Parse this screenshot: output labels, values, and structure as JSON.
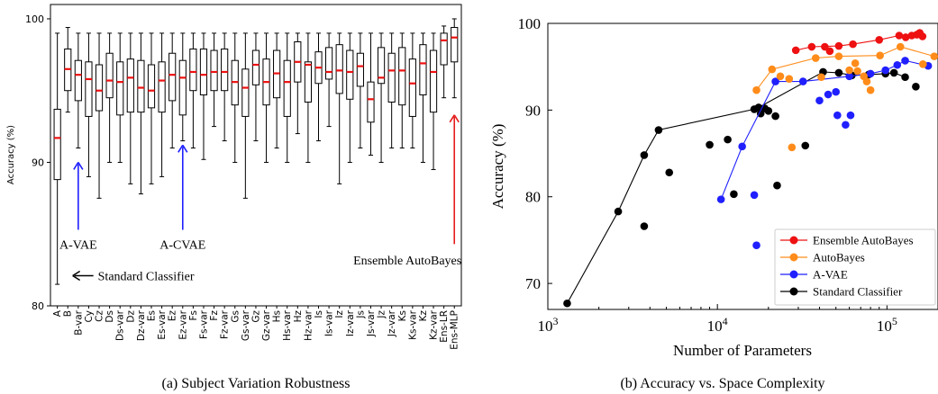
{
  "chart_data": [
    {
      "type": "box",
      "caption": "(a) Subject Variation Robustness",
      "ylabel": "Accuracy (%)",
      "ylim": [
        80,
        101
      ],
      "yticks": [
        80,
        90,
        100
      ],
      "categories": [
        "A",
        "B",
        "B-var",
        "Cy",
        "Cz",
        "Ds",
        "Ds-var",
        "Dz",
        "Dz-var",
        "Es",
        "Es-var",
        "Ez",
        "Ez-var",
        "Fs",
        "Fs-var",
        "Fz",
        "Fz-var",
        "Gs",
        "Gs-var",
        "Gz",
        "Gz-var",
        "Hs",
        "Hs-var",
        "Hz",
        "Hz-var",
        "Is",
        "Is-var",
        "Iz",
        "Iz-var",
        "Js",
        "Js-var",
        "Jz",
        "Jz-var",
        "Ks",
        "Ks-var",
        "Kz",
        "Kz-var",
        "Ens-LR",
        "Ens-MLP"
      ],
      "boxes": [
        {
          "min": 81.5,
          "q1": 88.8,
          "median": 91.7,
          "q3": 93.7,
          "max": 99.0
        },
        {
          "min": 93.5,
          "q1": 95.0,
          "median": 96.5,
          "q3": 97.9,
          "max": 99.4
        },
        {
          "min": 91.0,
          "q1": 94.3,
          "median": 96.1,
          "q3": 97.1,
          "max": 99.0
        },
        {
          "min": 89.0,
          "q1": 93.2,
          "median": 95.8,
          "q3": 97.0,
          "max": 99.0
        },
        {
          "min": 87.5,
          "q1": 93.6,
          "median": 95.0,
          "q3": 96.8,
          "max": 99.0
        },
        {
          "min": 90.0,
          "q1": 94.5,
          "median": 95.7,
          "q3": 97.6,
          "max": 99.0
        },
        {
          "min": 90.0,
          "q1": 93.3,
          "median": 95.6,
          "q3": 97.0,
          "max": 99.0
        },
        {
          "min": 88.5,
          "q1": 93.5,
          "median": 95.9,
          "q3": 97.2,
          "max": 99.0
        },
        {
          "min": 87.8,
          "q1": 93.5,
          "median": 95.2,
          "q3": 97.1,
          "max": 99.0
        },
        {
          "min": 88.5,
          "q1": 93.8,
          "median": 95.0,
          "q3": 96.8,
          "max": 99.0
        },
        {
          "min": 89.0,
          "q1": 93.5,
          "median": 95.7,
          "q3": 97.0,
          "max": 99.0
        },
        {
          "min": 91.0,
          "q1": 94.3,
          "median": 96.1,
          "q3": 97.6,
          "max": 99.0
        },
        {
          "min": 91.5,
          "q1": 93.3,
          "median": 95.9,
          "q3": 97.1,
          "max": 99.0
        },
        {
          "min": 91.0,
          "q1": 95.0,
          "median": 96.3,
          "q3": 97.9,
          "max": 99.0
        },
        {
          "min": 90.2,
          "q1": 94.7,
          "median": 96.1,
          "q3": 97.9,
          "max": 99.0
        },
        {
          "min": 92.5,
          "q1": 95.0,
          "median": 96.3,
          "q3": 97.8,
          "max": 99.0
        },
        {
          "min": 91.5,
          "q1": 95.0,
          "median": 96.3,
          "q3": 97.9,
          "max": 99.0
        },
        {
          "min": 90.0,
          "q1": 94.0,
          "median": 95.6,
          "q3": 97.1,
          "max": 99.0
        },
        {
          "min": 87.5,
          "q1": 93.2,
          "median": 95.2,
          "q3": 96.5,
          "max": 99.0
        },
        {
          "min": 91.5,
          "q1": 95.4,
          "median": 96.8,
          "q3": 97.8,
          "max": 99.0
        },
        {
          "min": 90.0,
          "q1": 94.0,
          "median": 95.6,
          "q3": 97.2,
          "max": 99.0
        },
        {
          "min": 91.0,
          "q1": 94.5,
          "median": 96.2,
          "q3": 97.8,
          "max": 99.0
        },
        {
          "min": 90.0,
          "q1": 93.2,
          "median": 95.6,
          "q3": 97.1,
          "max": 99.0
        },
        {
          "min": 92.0,
          "q1": 95.6,
          "median": 97.0,
          "q3": 98.4,
          "max": 99.0
        },
        {
          "min": 90.0,
          "q1": 94.2,
          "median": 96.8,
          "q3": 97.0,
          "max": 99.0
        },
        {
          "min": 91.5,
          "q1": 95.5,
          "median": 96.6,
          "q3": 97.7,
          "max": 99.0
        },
        {
          "min": 92.5,
          "q1": 95.8,
          "median": 96.3,
          "q3": 98.0,
          "max": 99.0
        },
        {
          "min": 88.5,
          "q1": 94.8,
          "median": 96.4,
          "q3": 98.2,
          "max": 99.0
        },
        {
          "min": 90.0,
          "q1": 94.4,
          "median": 96.3,
          "q3": 97.8,
          "max": 99.0
        },
        {
          "min": 91.0,
          "q1": 95.3,
          "median": 96.7,
          "q3": 97.6,
          "max": 99.0
        },
        {
          "min": 90.5,
          "q1": 92.8,
          "median": 94.4,
          "q3": 95.6,
          "max": 99.0
        },
        {
          "min": 90.0,
          "q1": 95.5,
          "median": 95.9,
          "q3": 98.0,
          "max": 99.0
        },
        {
          "min": 91.0,
          "q1": 94.2,
          "median": 96.4,
          "q3": 97.6,
          "max": 99.0
        },
        {
          "min": 91.0,
          "q1": 94.0,
          "median": 96.4,
          "q3": 98.0,
          "max": 99.0
        },
        {
          "min": 91.0,
          "q1": 93.2,
          "median": 95.5,
          "q3": 97.2,
          "max": 99.0
        },
        {
          "min": 90.0,
          "q1": 94.7,
          "median": 96.9,
          "q3": 98.2,
          "max": 99.0
        },
        {
          "min": 89.5,
          "q1": 93.5,
          "median": 96.3,
          "q3": 97.8,
          "max": 99.0
        },
        {
          "min": 94.5,
          "q1": 96.8,
          "median": 98.5,
          "q3": 99.0,
          "max": 99.5
        },
        {
          "min": 94.5,
          "q1": 97.0,
          "median": 98.7,
          "q3": 99.4,
          "max": 100.0
        }
      ],
      "annotations": [
        {
          "text": "A-VAE",
          "color": "#1f1fff",
          "arrow_category": "B-var",
          "arrow_from": 85.3,
          "arrow_to": 90.0,
          "label_y": 84.3
        },
        {
          "text": "A-CVAE",
          "color": "#1f1fff",
          "arrow_category": "Ez-var",
          "arrow_from": 85.3,
          "arrow_to": 91.2,
          "label_y": 84.3
        },
        {
          "text": "Ensemble AutoBayes",
          "color": "#e61a1a",
          "arrow_category": "Ens-MLP",
          "arrow_from": 84.3,
          "arrow_to": 93.3,
          "label_y": 83.2
        },
        {
          "text": "Standard Classifier",
          "color": "#000000",
          "arrow_category": "A",
          "arrow_from": 84.6,
          "arrow_to": 82.1,
          "label_y": 82.1
        }
      ]
    },
    {
      "type": "scatter",
      "caption": "(b) Accuracy vs. Space Complexity",
      "xlabel": "Number of Parameters",
      "ylabel": "Accuracy (%)",
      "xscale": "log",
      "xlim": [
        1000,
        200000
      ],
      "ylim": [
        67,
        100
      ],
      "xticks": [
        {
          "value": 1000,
          "base": "10",
          "exp": "3"
        },
        {
          "value": 10000,
          "base": "10",
          "exp": "4"
        },
        {
          "value": 100000,
          "base": "10",
          "exp": "5"
        }
      ],
      "yticks": [
        70,
        80,
        90,
        100
      ],
      "legend_position": "bottom-right",
      "series": [
        {
          "name": "Ensemble AutoBayes",
          "color": "#ee1111",
          "points": [
            [
              29000,
              96.9
            ],
            [
              36000,
              97.3
            ],
            [
              43000,
              97.3
            ],
            [
              46000,
              96.8
            ],
            [
              52000,
              97.4
            ],
            [
              63000,
              97.6
            ],
            [
              90000,
              98.1
            ],
            [
              118000,
              98.6
            ],
            [
              129000,
              98.4
            ],
            [
              140000,
              98.6
            ],
            [
              150000,
              98.7
            ],
            [
              156000,
              98.9
            ],
            [
              162000,
              98.5
            ]
          ],
          "frontier": [
            [
              29000,
              96.9
            ],
            [
              36000,
              97.3
            ],
            [
              52000,
              97.4
            ],
            [
              63000,
              97.6
            ],
            [
              90000,
              98.1
            ],
            [
              118000,
              98.6
            ],
            [
              150000,
              98.7
            ],
            [
              156000,
              98.9
            ]
          ]
        },
        {
          "name": "AutoBayes",
          "color": "#ff8c1a",
          "points": [
            [
              17000,
              92.3
            ],
            [
              21000,
              94.7
            ],
            [
              23500,
              93.9
            ],
            [
              26500,
              93.6
            ],
            [
              27500,
              85.7
            ],
            [
              38000,
              96.0
            ],
            [
              41000,
              93.8
            ],
            [
              52000,
              96.2
            ],
            [
              60000,
              94.6
            ],
            [
              65000,
              95.4
            ],
            [
              67000,
              94.5
            ],
            [
              73000,
              93.9
            ],
            [
              76000,
              93.3
            ],
            [
              80000,
              92.3
            ],
            [
              91000,
              96.3
            ],
            [
              120000,
              97.3
            ],
            [
              163000,
              95.3
            ],
            [
              190000,
              96.2
            ]
          ],
          "frontier": [
            [
              17000,
              92.3
            ],
            [
              21000,
              94.7
            ],
            [
              38000,
              96.0
            ],
            [
              52000,
              96.2
            ],
            [
              91000,
              96.3
            ],
            [
              120000,
              97.3
            ],
            [
              190000,
              96.2
            ]
          ]
        },
        {
          "name": "A-VAE",
          "color": "#1f1fff",
          "points": [
            [
              10500,
              79.7
            ],
            [
              14000,
              85.8
            ],
            [
              16500,
              80.2
            ],
            [
              22000,
              93.3
            ],
            [
              32000,
              93.3
            ],
            [
              40000,
              91.1
            ],
            [
              45000,
              91.8
            ],
            [
              50000,
              92.1
            ],
            [
              51000,
              89.4
            ],
            [
              57000,
              88.3
            ],
            [
              61000,
              89.4
            ],
            [
              60000,
              93.9
            ],
            [
              80000,
              94.2
            ],
            [
              98000,
              94.6
            ],
            [
              115000,
              95.2
            ],
            [
              128000,
              95.7
            ],
            [
              175000,
              95.1
            ]
          ],
          "frontier": [
            [
              10500,
              79.7
            ],
            [
              14000,
              85.8
            ],
            [
              22000,
              93.3
            ],
            [
              32000,
              93.3
            ],
            [
              60000,
              93.9
            ],
            [
              80000,
              94.2
            ],
            [
              98000,
              94.6
            ],
            [
              115000,
              95.2
            ],
            [
              128000,
              95.7
            ],
            [
              175000,
              95.1
            ]
          ]
        },
        {
          "name": "Standard Classifier",
          "color": "#000000",
          "points": [
            [
              1300,
              67.7
            ],
            [
              2600,
              78.3
            ],
            [
              3700,
              84.8
            ],
            [
              3700,
              76.6
            ],
            [
              4500,
              87.7
            ],
            [
              5200,
              82.8
            ],
            [
              9000,
              86.0
            ],
            [
              11500,
              86.6
            ],
            [
              12500,
              80.3
            ],
            [
              16500,
              90.1
            ],
            [
              17500,
              90.3
            ],
            [
              18000,
              89.6
            ],
            [
              19000,
              90.2
            ],
            [
              20000,
              89.9
            ],
            [
              22000,
              89.3
            ],
            [
              22500,
              81.3
            ],
            [
              33000,
              85.9
            ],
            [
              42000,
              94.4
            ],
            [
              52000,
              94.3
            ],
            [
              62000,
              94.0
            ],
            [
              78000,
              94.1
            ],
            [
              98000,
              94.2
            ],
            [
              110000,
              94.3
            ],
            [
              128000,
              93.8
            ],
            [
              148000,
              92.7
            ]
          ],
          "frontier": [
            [
              1300,
              67.7
            ],
            [
              2600,
              78.3
            ],
            [
              3700,
              84.8
            ],
            [
              4500,
              87.7
            ],
            [
              16500,
              90.1
            ],
            [
              17500,
              90.3
            ],
            [
              42000,
              94.4
            ],
            [
              52000,
              94.3
            ],
            [
              62000,
              94.0
            ],
            [
              78000,
              94.1
            ],
            [
              98000,
              94.2
            ],
            [
              110000,
              94.3
            ],
            [
              128000,
              93.8
            ]
          ]
        }
      ],
      "stray_point": {
        "x": 17000,
        "y": 74.4,
        "color": "#1f1fff"
      }
    }
  ]
}
